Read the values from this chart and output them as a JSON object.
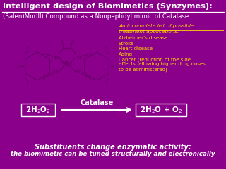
{
  "bg_color": "#8B008B",
  "title": "Intelligent design of Biomimetics (Synzymes):",
  "subtitle": "(Salen)Mn(III) Compound as a Nonpeptidyl mimic of Catalase",
  "title_color": "#FFFFFF",
  "subtitle_color": "#FFFFFF",
  "right_header_line1": "An incomplete list of possible",
  "right_header_line2": "treatment applications:",
  "right_items": [
    "Alzheimer’s disease",
    "Stroke",
    "Heart disease",
    "Aging",
    "Cancer (reduction of the side",
    "effects, allowing higher drug doses",
    "to be administered)"
  ],
  "right_color": "#FFD700",
  "catalase_label": "Catalase",
  "bottom_line1": "Substituents change enzymatic activity:",
  "bottom_line2": "the biomimetic can be tuned structurally and electronically",
  "bottom_color": "#FFFFFF",
  "molecule_color": "#6A006A",
  "molecule_line_color": "#5A005A"
}
